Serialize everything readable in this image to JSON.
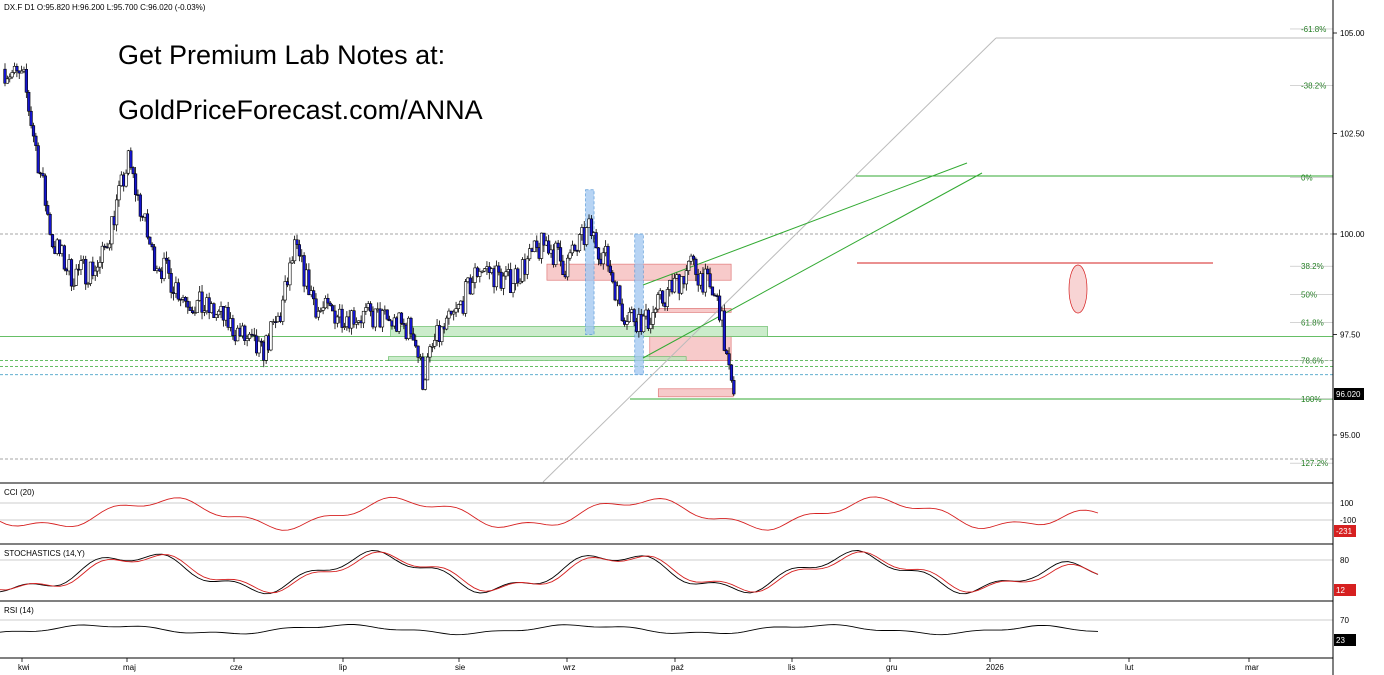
{
  "header": {
    "ohlc": "DX.F  D1  O:95.820  H:96.200  L:95.700  C:96.020  (-0.03%)"
  },
  "promo": {
    "line1": "Get Premium Lab Notes at:",
    "line2": "GoldPriceForecast.com/ANNA"
  },
  "colors": {
    "candle_up": "#ffffff",
    "candle_down": "#1515d0",
    "wick": "#000000",
    "trend_green": "#33aa33",
    "fib_text": "#1a7a1a",
    "zone_red": "#f4b8b8",
    "zone_green": "#b9e6b9",
    "zone_blue": "#9fc6f0",
    "cci_line": "#d62020",
    "stoch_k": "#000000",
    "stoch_d": "#d62020",
    "rsi_line": "#000000",
    "tag_dark": "#000000",
    "tag_red": "#d62020"
  },
  "chart_data": {
    "type": "candlestick",
    "symbol": "DX.F",
    "timeframe": "D1",
    "price_axis": {
      "ticks": [
        "105.00",
        "102.50",
        "100.00",
        "97.50",
        "95.00"
      ],
      "range": [
        93.5,
        106.0
      ],
      "last_price": "96.020"
    },
    "time_axis": [
      "kwi",
      "maj",
      "cze",
      "lip",
      "sie",
      "wrz",
      "paź",
      "lis",
      "gru",
      "2026",
      "lut",
      "mar"
    ],
    "bars_count": 205,
    "closes_anchor": [
      [
        0,
        104.1
      ],
      [
        8,
        103.8
      ],
      [
        15,
        101.5
      ],
      [
        20,
        99.8
      ],
      [
        28,
        99.0
      ],
      [
        40,
        99.2
      ],
      [
        52,
        101.8
      ],
      [
        62,
        99.5
      ],
      [
        76,
        98.4
      ],
      [
        92,
        97.9
      ],
      [
        108,
        97.0
      ],
      [
        116,
        98.0
      ],
      [
        122,
        99.6
      ],
      [
        132,
        98.1
      ],
      [
        145,
        98.0
      ],
      [
        158,
        97.9
      ],
      [
        172,
        97.6
      ],
      [
        176,
        96.4
      ],
      [
        181,
        97.3
      ],
      [
        190,
        98.0
      ],
      [
        200,
        99.2
      ],
      [
        212,
        98.8
      ],
      [
        228,
        99.8
      ],
      [
        236,
        99.2
      ],
      [
        246,
        100.1
      ],
      [
        254,
        99.3
      ],
      [
        260,
        98.1
      ],
      [
        270,
        97.8
      ],
      [
        280,
        98.6
      ],
      [
        289,
        99.2
      ],
      [
        294,
        98.9
      ],
      [
        301,
        98.2
      ],
      [
        303,
        97.3
      ],
      [
        306,
        96.1
      ],
      [
        307,
        96.02
      ]
    ],
    "fibonacci_levels": [
      {
        "label": "-61.8%",
        "price": 105.1
      },
      {
        "label": "-38.2%",
        "price": 103.7
      },
      {
        "label": "0%",
        "price": 101.4
      },
      {
        "label": "38.2%",
        "price": 99.2
      },
      {
        "label": "50%",
        "price": 98.5
      },
      {
        "label": "61.8%",
        "price": 97.8
      },
      {
        "label": "78.6%",
        "price": 96.85
      },
      {
        "label": "100%",
        "price": 95.9
      },
      {
        "label": "127.2%",
        "price": 94.3
      }
    ],
    "reference_lines": [
      100.0,
      97.45,
      96.85,
      96.7,
      96.5
    ],
    "zones": [
      {
        "kind": "red",
        "x_from": 253,
        "x_to": 339,
        "price_top": 99.25,
        "price_bottom": 98.85
      },
      {
        "kind": "red",
        "x_from": 304,
        "x_to": 339,
        "price_top": 98.15,
        "price_bottom": 98.05
      },
      {
        "kind": "red",
        "x_from": 301,
        "x_to": 339,
        "price_top": 97.45,
        "price_bottom": 96.85
      },
      {
        "kind": "red",
        "x_from": 305,
        "x_to": 340,
        "price_top": 96.15,
        "price_bottom": 95.95
      },
      {
        "kind": "green",
        "x_from": 180,
        "x_to": 356,
        "price_top": 97.7,
        "price_bottom": 97.45
      },
      {
        "kind": "green",
        "x_from": 179,
        "x_to": 318,
        "price_top": 96.95,
        "price_bottom": 96.85
      },
      {
        "kind": "blue",
        "x_from": 271,
        "x_to": 275,
        "price_top": 101.1,
        "price_bottom": 97.5
      },
      {
        "kind": "blue",
        "x_from": 294,
        "x_to": 298,
        "price_top": 100.0,
        "price_bottom": 96.5
      }
    ],
    "indicators": [
      {
        "name": "CCI (20)",
        "ticks": [
          "100",
          "-100"
        ],
        "last": "-231"
      },
      {
        "name": "STOCHASTICS (14,Y)",
        "ticks": [
          "80"
        ],
        "last": "12"
      },
      {
        "name": "RSI (14)",
        "ticks": [
          "70"
        ],
        "last": "23"
      }
    ]
  }
}
